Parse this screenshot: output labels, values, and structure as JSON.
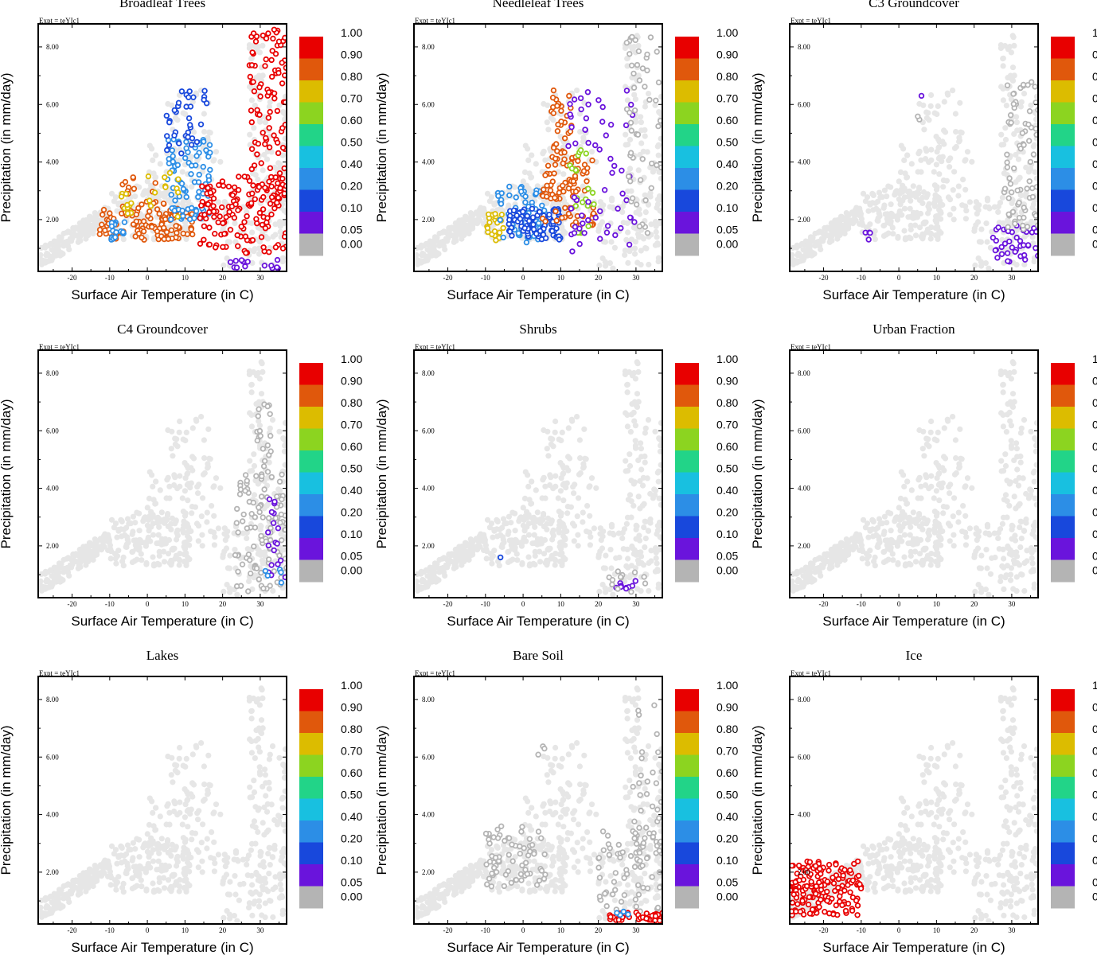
{
  "chart_data": {
    "type": "scatter",
    "layout": "3x3 grid of panels",
    "experiment_label": "Expt = teYIc1",
    "xlabel": "Surface Air Temperature (in C)",
    "ylabel": "Precipitation (in mm/day)",
    "xlim": [
      -29,
      37
    ],
    "ylim": [
      0.2,
      8.8
    ],
    "x_ticks": [
      "-20",
      "-10",
      "0",
      "10",
      "20",
      "30"
    ],
    "x_tick_values": [
      -20,
      -10,
      0,
      10,
      20,
      30
    ],
    "y_ticks": [
      "2.00",
      "4.00",
      "6.00",
      "8.00"
    ],
    "y_tick_values": [
      2,
      4,
      6,
      8
    ],
    "colorbar": {
      "labels": [
        "1.00",
        "0.90",
        "0.80",
        "0.70",
        "0.60",
        "0.50",
        "0.40",
        "0.20",
        "0.10",
        "0.05",
        "0.00"
      ],
      "colors": [
        "#e80000",
        "#e0580c",
        "#dcbc00",
        "#8cd420",
        "#22d488",
        "#18c0e0",
        "#2c8ee6",
        "#1848dc",
        "#6a14dc",
        "#b4b4b4"
      ]
    },
    "background_color": "#e6e6e6",
    "zero_color": "#b4b4b4",
    "panels": [
      {
        "title": "Broadleaf Trees",
        "clusters": [
          {
            "x": [
              -13,
              12
            ],
            "y": [
              1.3,
              2.4
            ],
            "value": 0.85,
            "count": 110
          },
          {
            "x": [
              -9,
              5
            ],
            "y": [
              2.0,
              3.6
            ],
            "value": 0.88,
            "count": 25
          },
          {
            "x": [
              -10,
              -6
            ],
            "y": [
              1.3,
              2.0
            ],
            "value": 0.3,
            "count": 18
          },
          {
            "x": [
              -7,
              -4
            ],
            "y": [
              2.2,
              3.0
            ],
            "value": 0.75,
            "count": 10
          },
          {
            "x": [
              5,
              17
            ],
            "y": [
              2.0,
              4.8
            ],
            "value": 0.35,
            "count": 90
          },
          {
            "x": [
              5,
              16
            ],
            "y": [
              4.2,
              6.6
            ],
            "value": 0.15,
            "count": 35
          },
          {
            "x": [
              -1,
              10
            ],
            "y": [
              2.0,
              4.0
            ],
            "value": 0.75,
            "count": 12
          },
          {
            "x": [
              14,
              37
            ],
            "y": [
              0.8,
              3.5
            ],
            "value": 0.95,
            "count": 130
          },
          {
            "x": [
              27,
              37
            ],
            "y": [
              2.5,
              8.6
            ],
            "value": 0.95,
            "count": 110
          },
          {
            "x": [
              22,
              35
            ],
            "y": [
              0.3,
              0.6
            ],
            "value": 0.07,
            "count": 14
          }
        ]
      },
      {
        "title": "Needleleaf Trees",
        "clusters": [
          {
            "x": [
              -10,
              -5
            ],
            "y": [
              1.2,
              2.2
            ],
            "value": 0.72,
            "count": 22
          },
          {
            "x": [
              -7,
              6
            ],
            "y": [
              1.2,
              3.2
            ],
            "value": 0.25,
            "count": 70
          },
          {
            "x": [
              -4,
              10
            ],
            "y": [
              1.3,
              2.4
            ],
            "value": 0.15,
            "count": 90
          },
          {
            "x": [
              5,
              19
            ],
            "y": [
              1.8,
              4.2
            ],
            "value": 0.82,
            "count": 90
          },
          {
            "x": [
              7,
              13
            ],
            "y": [
              4.2,
              6.5
            ],
            "value": 0.83,
            "count": 30
          },
          {
            "x": [
              10,
              19
            ],
            "y": [
              1.5,
              4.5
            ],
            "value": 0.7,
            "count": 20
          },
          {
            "x": [
              12,
              30
            ],
            "y": [
              0.8,
              6.5
            ],
            "value": 0.08,
            "count": 60
          },
          {
            "x": [
              27,
              37
            ],
            "y": [
              1.5,
              8.6
            ],
            "value": 0.0,
            "count": 50
          }
        ]
      },
      {
        "title": "C3 Groundcover",
        "clusters": [
          {
            "x": [
              -10,
              -7
            ],
            "y": [
              1.2,
              1.6
            ],
            "value": 0.08,
            "count": 4
          },
          {
            "x": [
              6,
              6
            ],
            "y": [
              6.3,
              6.3
            ],
            "value": 0.07,
            "count": 1
          },
          {
            "x": [
              5,
              6
            ],
            "y": [
              5.4,
              5.7
            ],
            "value": 0.0,
            "count": 2
          },
          {
            "x": [
              25,
              37
            ],
            "y": [
              0.5,
              1.8
            ],
            "value": 0.07,
            "count": 40
          },
          {
            "x": [
              28,
              37
            ],
            "y": [
              1.5,
              6.8
            ],
            "value": 0.0,
            "count": 70
          }
        ]
      },
      {
        "title": "C4 Groundcover",
        "clusters": [
          {
            "x": [
              23,
              37
            ],
            "y": [
              0.4,
              4.5
            ],
            "value": 0.0,
            "count": 100
          },
          {
            "x": [
              29,
              33
            ],
            "y": [
              4.0,
              7.0
            ],
            "value": 0.0,
            "count": 20
          },
          {
            "x": [
              32,
              37
            ],
            "y": [
              0.8,
              3.7
            ],
            "value": 0.07,
            "count": 18
          },
          {
            "x": [
              31,
              36
            ],
            "y": [
              0.7,
              1.2
            ],
            "value": 0.3,
            "count": 5
          }
        ]
      },
      {
        "title": "Shrubs",
        "clusters": [
          {
            "x": [
              -6,
              -6
            ],
            "y": [
              1.6,
              1.6
            ],
            "value": 0.15,
            "count": 1
          },
          {
            "x": [
              24,
              30
            ],
            "y": [
              0.5,
              0.8
            ],
            "value": 0.1,
            "count": 9
          },
          {
            "x": [
              22,
              33
            ],
            "y": [
              0.4,
              1.2
            ],
            "value": 0.0,
            "count": 12
          }
        ]
      },
      {
        "title": "Urban Fraction",
        "clusters": []
      },
      {
        "title": "Lakes",
        "clusters": []
      },
      {
        "title": "Bare Soil",
        "clusters": [
          {
            "x": [
              -10,
              6
            ],
            "y": [
              1.5,
              3.6
            ],
            "value": 0.0,
            "count": 70
          },
          {
            "x": [
              4,
              6
            ],
            "y": [
              5.8,
              6.4
            ],
            "value": 0.0,
            "count": 3
          },
          {
            "x": [
              20,
              37
            ],
            "y": [
              0.6,
              3.5
            ],
            "value": 0.0,
            "count": 70
          },
          {
            "x": [
              29,
              37
            ],
            "y": [
              2.5,
              7.8
            ],
            "value": 0.0,
            "count": 35
          },
          {
            "x": [
              23,
              37
            ],
            "y": [
              0.3,
              0.6
            ],
            "value": 0.96,
            "count": 45
          },
          {
            "x": [
              24,
              28
            ],
            "y": [
              0.5,
              0.7
            ],
            "value": 0.35,
            "count": 5
          }
        ]
      },
      {
        "title": "Ice",
        "clusters": [
          {
            "x": [
              -29,
              -10
            ],
            "y": [
              0.5,
              2.4
            ],
            "value": 0.95,
            "count": 160
          }
        ]
      }
    ]
  }
}
